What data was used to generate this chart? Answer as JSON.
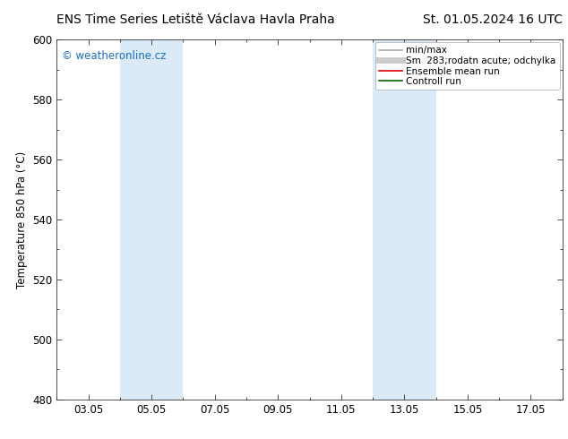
{
  "title_left": "ENS Time Series Letiště Václava Havla Praha",
  "title_right": "St. 01.05.2024 16 UTC",
  "ylabel": "Temperature 850 hPa (°C)",
  "watermark": "© weatheronline.cz",
  "watermark_color": "#1a6ec7",
  "ylim": [
    480,
    600
  ],
  "yticks": [
    480,
    500,
    520,
    540,
    560,
    580,
    600
  ],
  "xlim": [
    0,
    16
  ],
  "xtick_labels": [
    "03.05",
    "05.05",
    "07.05",
    "09.05",
    "11.05",
    "13.05",
    "15.05",
    "17.05"
  ],
  "xtick_positions": [
    1.0,
    3.0,
    5.0,
    7.0,
    9.0,
    11.0,
    13.0,
    15.0
  ],
  "shaded_bands": [
    {
      "x_start": 2.0,
      "x_end": 4.0
    },
    {
      "x_start": 10.0,
      "x_end": 12.0
    }
  ],
  "shade_color": "#daeaf7",
  "legend_entries": [
    {
      "label": "min/max",
      "color": "#aaaaaa",
      "lw": 1.2,
      "ls": "-"
    },
    {
      "label": "Sm  283;rodatn acute; odchylka",
      "color": "#cccccc",
      "lw": 5,
      "ls": "-"
    },
    {
      "label": "Ensemble mean run",
      "color": "#dd0000",
      "lw": 1.2,
      "ls": "-"
    },
    {
      "label": "Controll run",
      "color": "#006600",
      "lw": 1.2,
      "ls": "-"
    }
  ],
  "bg_color": "#ffffff",
  "plot_area_color": "#ffffff",
  "title_fontsize": 10,
  "axis_label_fontsize": 8.5,
  "tick_label_fontsize": 8.5,
  "watermark_fontsize": 8.5,
  "legend_fontsize": 7.5
}
